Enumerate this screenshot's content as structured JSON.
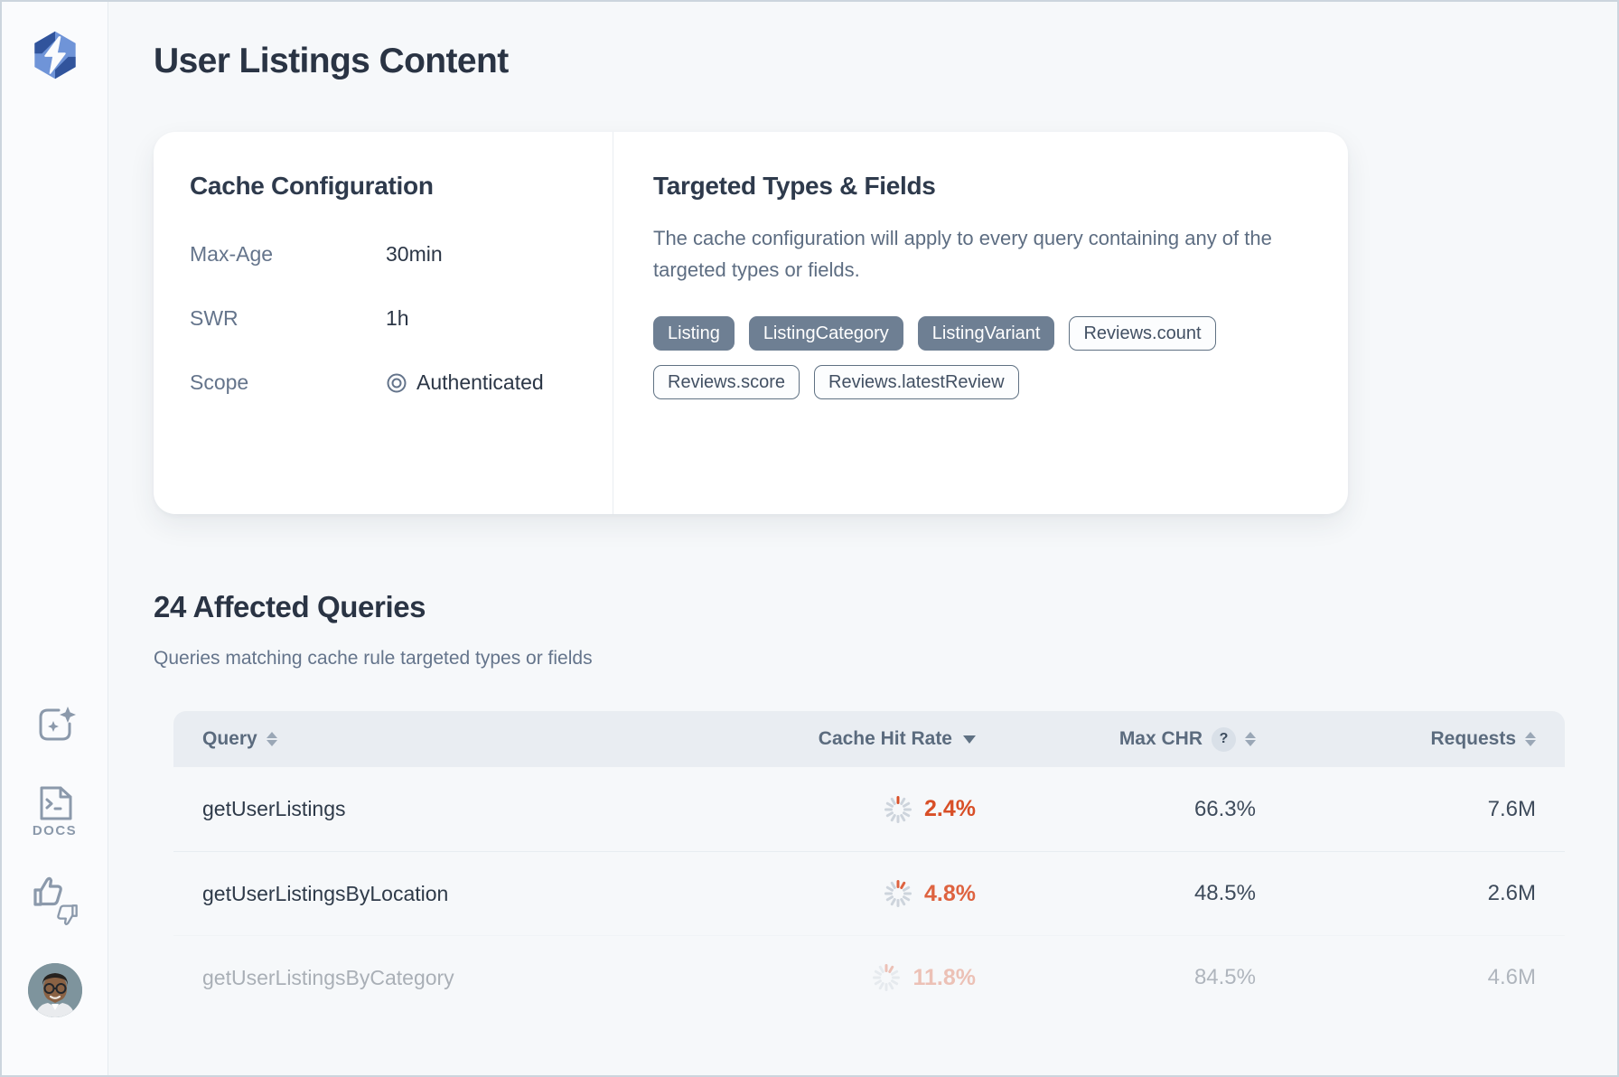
{
  "page": {
    "title": "User Listings Content"
  },
  "sidebar": {
    "logo": "app-logo",
    "items": [
      {
        "name": "ai-assistant",
        "label": ""
      },
      {
        "name": "docs",
        "label": "DOCS"
      },
      {
        "name": "feedback",
        "label": ""
      },
      {
        "name": "user-avatar",
        "label": ""
      }
    ]
  },
  "cache_config": {
    "title": "Cache Configuration",
    "rows": [
      {
        "label": "Max-Age",
        "value": "30min"
      },
      {
        "label": "SWR",
        "value": "1h"
      },
      {
        "label": "Scope",
        "value": "Authenticated",
        "icon": "scope-target-icon"
      }
    ]
  },
  "targeted": {
    "title": "Targeted Types & Fields",
    "description": "The cache configuration will apply to every query containing any of the targeted types or fields.",
    "badges": [
      {
        "label": "Listing",
        "style": "filled"
      },
      {
        "label": "ListingCategory",
        "style": "filled"
      },
      {
        "label": "ListingVariant",
        "style": "filled"
      },
      {
        "label": "Reviews.count",
        "style": "outlined"
      },
      {
        "label": "Reviews.score",
        "style": "outlined"
      },
      {
        "label": "Reviews.latestReview",
        "style": "outlined"
      }
    ]
  },
  "queries": {
    "title": "24 Affected Queries",
    "subtitle": "Queries matching cache rule targeted types or fields",
    "table": {
      "columns": [
        {
          "label": "Query",
          "sort": "sortable"
        },
        {
          "label": "Cache Hit Rate",
          "sort": "desc"
        },
        {
          "label": "Max CHR",
          "help": "?",
          "sort": "sortable"
        },
        {
          "label": "Requests",
          "sort": "sortable"
        }
      ],
      "rows": [
        {
          "query": "getUserListings",
          "chr": "2.4%",
          "chr_ticks": 1,
          "chr_color": "#d84f27",
          "max_chr": "66.3%",
          "requests": "7.6M",
          "faded": false
        },
        {
          "query": "getUserListingsByLocation",
          "chr": "4.8%",
          "chr_ticks": 2,
          "chr_color": "#de6340",
          "max_chr": "48.5%",
          "requests": "2.6M",
          "faded": false
        },
        {
          "query": "getUserListingsByCategory",
          "chr": "11.8%",
          "chr_ticks": 2,
          "chr_color": "#dc6a4a",
          "max_chr": "84.5%",
          "requests": "4.6M",
          "faded": true
        }
      ]
    }
  },
  "colors": {
    "accent_red": "#d84f27",
    "badge_filled": "#6e7f93",
    "header_bg": "#e9edf2",
    "spinner_track": "#cdd4dc",
    "logo_dark": "#31549c",
    "logo_light": "#6f94d8"
  }
}
